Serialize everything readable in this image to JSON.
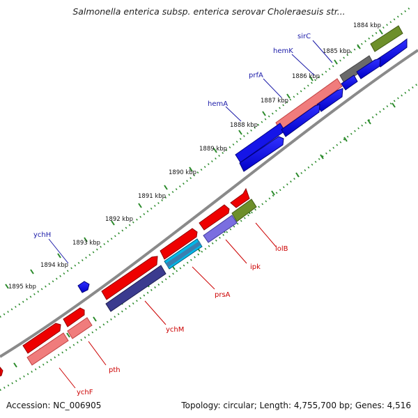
{
  "title": "Salmonella enterica subsp. enterica serovar Choleraesuis str...",
  "accession": "Accession: NC_006905",
  "topology": "Topology: circular; Length: 4,755,700 bp; Genes: 4,516",
  "colors": {
    "background": "#ffffff",
    "backbone": "#888888",
    "tick_dots": "#2a8a2a",
    "upper_gene_label": "#1a1aa8",
    "lower_gene_label": "#cc0000"
  },
  "kbp_labels": [
    "1884 kbp",
    "1885 kbp",
    "1886 kbp",
    "1887 kbp",
    "1888 kbp",
    "1889 kbp",
    "1890 kbp",
    "1891 kbp",
    "1892 kbp",
    "1893 kbp",
    "1894 kbp",
    "1895 kbp"
  ],
  "upper_gene_labels": [
    "sirC",
    "hemK",
    "prfA",
    "hemA",
    "ychH"
  ],
  "lower_gene_labels": [
    "lolB",
    "ipk",
    "prsA",
    "ychM",
    "pth",
    "ychF"
  ]
}
